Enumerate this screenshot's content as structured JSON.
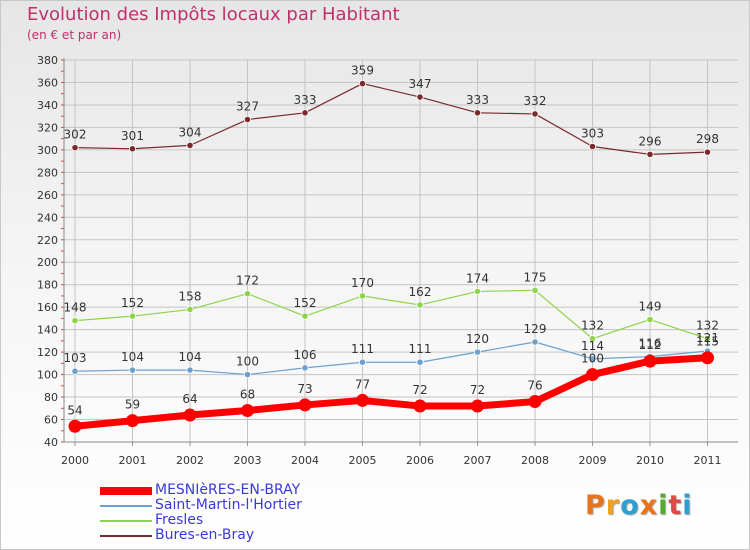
{
  "title": "Evolution des Impôts locaux par Habitant",
  "subtitle": "(en € et par an)",
  "logo": {
    "text": "Proxiti",
    "colors": [
      "#e8731a",
      "#f0a020",
      "#2e9fd0",
      "#e8731a",
      "#5aa830",
      "#e04848",
      "#2e9fd0"
    ]
  },
  "chart_data": {
    "type": "line",
    "x": [
      2000,
      2001,
      2002,
      2003,
      2004,
      2005,
      2006,
      2007,
      2008,
      2009,
      2010,
      2011
    ],
    "ylim": [
      40,
      380
    ],
    "yticks": [
      40,
      60,
      80,
      100,
      120,
      140,
      160,
      180,
      200,
      220,
      240,
      260,
      280,
      300,
      320,
      340,
      360,
      380
    ],
    "grid": true,
    "legend_position": "bottom-left",
    "series": [
      {
        "name": "Bures-en-Bray",
        "color": "#7a2a2a",
        "values": [
          302,
          301,
          304,
          327,
          333,
          359,
          347,
          333,
          332,
          303,
          296,
          298
        ],
        "labels": [
          "302",
          "301",
          "304",
          "327",
          "333",
          "359",
          "347",
          "333",
          "332",
          "303",
          "296",
          "298"
        ],
        "thick": false
      },
      {
        "name": "Fresles",
        "color": "#8ed44a",
        "values": [
          148,
          152,
          158,
          172,
          152,
          170,
          162,
          174,
          175,
          132,
          149,
          132
        ],
        "labels": [
          "148",
          "152",
          "158",
          "172",
          "152",
          "170",
          "162",
          "174",
          "175",
          "132",
          "149",
          "132"
        ],
        "thick": false
      },
      {
        "name": "Saint-Martin-l'Hortier",
        "color": "#6ba0cf",
        "values": [
          103,
          104,
          104,
          100,
          106,
          111,
          111,
          120,
          129,
          114,
          116,
          121
        ],
        "labels": [
          "103",
          "104",
          "104",
          "100",
          "106",
          "111",
          "111",
          "120",
          "129",
          "114",
          "116",
          "121"
        ],
        "thick": false
      },
      {
        "name": "MESNIèRES-EN-BRAY",
        "color": "#ff0000",
        "values": [
          54,
          59,
          64,
          68,
          73,
          77,
          72,
          72,
          76,
          100,
          112,
          115
        ],
        "labels": [
          "54",
          "59",
          "64",
          "68",
          "73",
          "77",
          "72",
          "72",
          "76",
          "100",
          "112",
          "115"
        ],
        "thick": true
      }
    ],
    "legend": [
      {
        "name": "MESNIèRES-EN-BRAY",
        "color": "#ff0000",
        "text_color": "#3a3ad8"
      },
      {
        "name": "Saint-Martin-l'Hortier",
        "color": "#6ba0cf",
        "text_color": "#3a3ad8"
      },
      {
        "name": "Fresles",
        "color": "#8ed44a",
        "text_color": "#3a3ad8"
      },
      {
        "name": "Bures-en-Bray",
        "color": "#7a2a2a",
        "text_color": "#3a3ad8"
      }
    ]
  }
}
